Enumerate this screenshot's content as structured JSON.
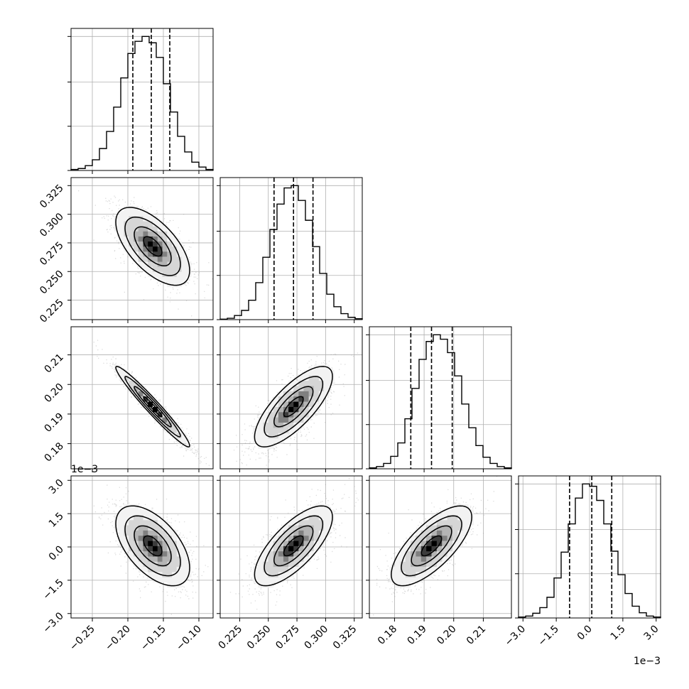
{
  "chart_data": {
    "type": "corner",
    "grid": true,
    "colors": {
      "line": "#000000",
      "grid": "#b0b0b0",
      "scatter": "#9a9a9a"
    },
    "params": [
      {
        "id": "p0",
        "lim": [
          -0.28,
          -0.08
        ],
        "ticks": [
          -0.25,
          -0.2,
          -0.15,
          -0.1
        ],
        "tick_labels": [
          "−0.25",
          "−0.20",
          "−0.15",
          "−0.10"
        ],
        "mean": -0.165,
        "sd": 0.026,
        "quantiles": [
          -0.193,
          -0.167,
          -0.141
        ]
      },
      {
        "id": "p1",
        "lim": [
          0.208,
          0.332
        ],
        "ticks": [
          0.225,
          0.25,
          0.275,
          0.3,
          0.325
        ],
        "tick_labels": [
          "0.225",
          "0.250",
          "0.275",
          "0.300",
          "0.325"
        ],
        "mean": 0.272,
        "sd": 0.017,
        "quantiles": [
          0.255,
          0.272,
          0.289
        ]
      },
      {
        "id": "p2",
        "lim": [
          0.1715,
          0.2195
        ],
        "ticks": [
          0.18,
          0.19,
          0.2,
          0.21
        ],
        "tick_labels": [
          "0.18",
          "0.19",
          "0.20",
          "0.21"
        ],
        "mean": 0.1925,
        "sd": 0.0068,
        "quantiles": [
          0.1855,
          0.1925,
          0.1995
        ]
      },
      {
        "id": "p3",
        "lim": [
          -3.2,
          3.2
        ],
        "ticks": [
          -3.0,
          -1.5,
          0.0,
          1.5,
          3.0
        ],
        "tick_labels": [
          "−3.0",
          "−1.5",
          "0.0",
          "1.5",
          "3.0"
        ],
        "mean": 0.05,
        "sd": 0.9,
        "quantiles": [
          -0.9,
          0.1,
          1.0
        ]
      }
    ],
    "offset_labels": {
      "y_p3": "1e−3",
      "x_p3": "1e−3"
    },
    "histograms": [
      {
        "param": "p0",
        "counts": [
          2,
          4,
          10,
          22,
          45,
          80,
          130,
          190,
          240,
          265,
          275,
          262,
          232,
          178,
          120,
          70,
          38,
          17,
          7,
          2
        ]
      },
      {
        "param": "p1",
        "counts": [
          1,
          3,
          9,
          20,
          42,
          80,
          135,
          195,
          250,
          285,
          290,
          258,
          215,
          158,
          100,
          55,
          28,
          13,
          5,
          2
        ]
      },
      {
        "param": "p2",
        "counts": [
          2,
          5,
          12,
          28,
          58,
          112,
          180,
          245,
          285,
          300,
          290,
          260,
          208,
          145,
          92,
          52,
          26,
          12,
          5,
          2
        ]
      },
      {
        "param": "p3",
        "counts": [
          2,
          4,
          10,
          22,
          44,
          85,
          140,
          200,
          255,
          285,
          280,
          250,
          200,
          142,
          92,
          52,
          25,
          11,
          4,
          2
        ]
      }
    ],
    "pairs": [
      {
        "x": "p0",
        "y": "p1",
        "rho": -0.62
      },
      {
        "x": "p0",
        "y": "p2",
        "rho": -0.97
      },
      {
        "x": "p1",
        "y": "p2",
        "rho": 0.75
      },
      {
        "x": "p0",
        "y": "p3",
        "rho": -0.55
      },
      {
        "x": "p1",
        "y": "p3",
        "rho": 0.72
      },
      {
        "x": "p2",
        "y": "p3",
        "rho": 0.72
      }
    ],
    "contour_levels_sigma": [
      0.5,
      1.0,
      1.5,
      2.0
    ]
  }
}
